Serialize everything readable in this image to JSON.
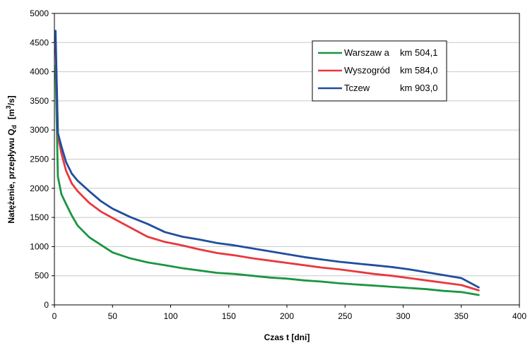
{
  "chart_data": {
    "type": "line",
    "xlabel": "Czas t [dni]",
    "ylabel_main": "Natężenie, przepływu Q",
    "ylabel_sub": "d",
    "ylabel_unit_pre": "[m",
    "ylabel_unit_sup": "3",
    "ylabel_unit_post": "/s]",
    "xlim": [
      0,
      400
    ],
    "ylim": [
      0,
      5000
    ],
    "xticks": [
      0,
      50,
      100,
      150,
      200,
      250,
      300,
      350,
      400
    ],
    "yticks": [
      0,
      500,
      1000,
      1500,
      2000,
      2500,
      3000,
      3500,
      4000,
      4500,
      5000
    ],
    "grid": true,
    "legend_position": "top-right",
    "series": [
      {
        "name": "Warszaw a",
        "km": "km 504,1",
        "color": "#1a9641",
        "x": [
          1,
          3,
          6,
          10,
          15,
          20,
          30,
          40,
          50,
          65,
          80,
          95,
          110,
          125,
          140,
          155,
          170,
          185,
          200,
          215,
          230,
          245,
          260,
          275,
          290,
          305,
          320,
          335,
          350,
          365
        ],
        "y": [
          4100,
          2200,
          1900,
          1730,
          1530,
          1360,
          1160,
          1030,
          900,
          800,
          730,
          680,
          630,
          590,
          550,
          530,
          500,
          470,
          450,
          420,
          400,
          370,
          350,
          330,
          310,
          290,
          270,
          240,
          220,
          170
        ]
      },
      {
        "name": "Wyszogród",
        "km": "km 584,0",
        "color": "#e8383d",
        "x": [
          1,
          3,
          6,
          10,
          15,
          20,
          30,
          40,
          50,
          65,
          80,
          95,
          110,
          125,
          140,
          155,
          170,
          185,
          200,
          215,
          230,
          245,
          260,
          275,
          290,
          305,
          320,
          335,
          350,
          365
        ],
        "y": [
          4500,
          2900,
          2600,
          2300,
          2080,
          1950,
          1750,
          1600,
          1490,
          1330,
          1170,
          1080,
          1020,
          950,
          890,
          850,
          800,
          760,
          720,
          680,
          640,
          610,
          570,
          530,
          500,
          460,
          420,
          380,
          340,
          250
        ]
      },
      {
        "name": "Tczew",
        "km": "km 903,0",
        "color": "#1f4e9e",
        "x": [
          1,
          3,
          6,
          10,
          15,
          20,
          30,
          40,
          50,
          65,
          80,
          95,
          110,
          125,
          140,
          155,
          170,
          185,
          200,
          215,
          230,
          245,
          260,
          275,
          290,
          305,
          320,
          335,
          350,
          365
        ],
        "y": [
          4700,
          2950,
          2720,
          2450,
          2250,
          2130,
          1950,
          1780,
          1650,
          1510,
          1390,
          1250,
          1170,
          1120,
          1060,
          1020,
          970,
          920,
          870,
          820,
          780,
          740,
          710,
          680,
          650,
          610,
          560,
          510,
          460,
          300
        ]
      }
    ]
  }
}
